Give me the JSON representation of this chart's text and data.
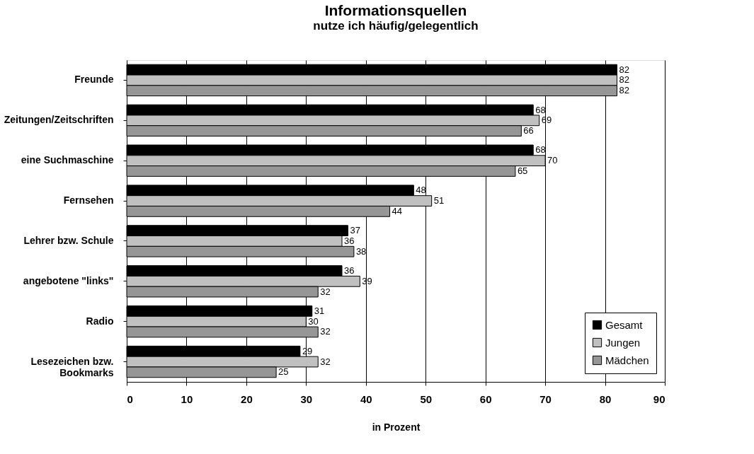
{
  "chart_data": {
    "type": "bar",
    "orientation": "horizontal",
    "title": "Informationsquellen",
    "subtitle": "nutze ich häufig/gelegentlich",
    "xlabel": "in Prozent",
    "categories": [
      "Freunde",
      "Zeitungen/Zeitschriften",
      "eine Suchmaschine",
      "Fernsehen",
      "Lehrer bzw. Schule",
      "angebotene \"links\"",
      "Radio",
      "Lesezeichen bzw.\nBookmarks"
    ],
    "series": [
      {
        "name": "Gesamt",
        "color": "#000000",
        "values": [
          82,
          68,
          68,
          48,
          37,
          36,
          31,
          29
        ]
      },
      {
        "name": "Jungen",
        "color": "#c0c0c0",
        "values": [
          82,
          69,
          70,
          51,
          36,
          39,
          30,
          32
        ]
      },
      {
        "name": "Mädchen",
        "color": "#969696",
        "values": [
          82,
          66,
          65,
          44,
          38,
          32,
          32,
          25
        ]
      }
    ],
    "xlim": [
      0,
      90
    ],
    "xticks": [
      0,
      10,
      20,
      30,
      40,
      50,
      60,
      70,
      80,
      90
    ],
    "grid": "x",
    "legend": "bottom right",
    "data_labels": true
  }
}
